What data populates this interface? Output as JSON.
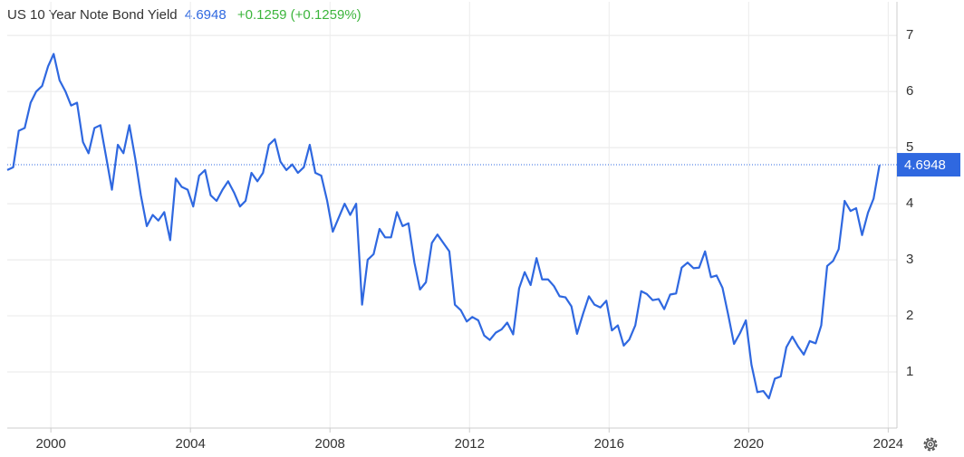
{
  "chart_data": {
    "type": "line",
    "title": "US 10 Year Note Bond Yield",
    "last_value": 4.6948,
    "last_value_label": "4.6948",
    "change": "+0.1259 (+0.1259%)",
    "xlim": [
      1998.75,
      2024.25
    ],
    "xticks": [
      2000,
      2004,
      2008,
      2012,
      2016,
      2020,
      2024
    ],
    "ylim": [
      0,
      7.6
    ],
    "yticks": [
      1,
      2,
      3,
      4,
      5,
      6,
      7
    ],
    "grid": true,
    "series": [
      {
        "name": "US 10 Year Note Bond Yield",
        "color": "#2f68e0",
        "x": [
          1998.75,
          1998.92,
          1999.08,
          1999.25,
          1999.42,
          1999.58,
          1999.75,
          1999.92,
          2000.08,
          2000.25,
          2000.42,
          2000.58,
          2000.75,
          2000.92,
          2001.08,
          2001.25,
          2001.42,
          2001.58,
          2001.75,
          2001.92,
          2002.08,
          2002.25,
          2002.42,
          2002.58,
          2002.75,
          2002.92,
          2003.08,
          2003.25,
          2003.42,
          2003.58,
          2003.75,
          2003.92,
          2004.08,
          2004.25,
          2004.42,
          2004.58,
          2004.75,
          2004.92,
          2005.08,
          2005.25,
          2005.42,
          2005.58,
          2005.75,
          2005.92,
          2006.08,
          2006.25,
          2006.42,
          2006.58,
          2006.75,
          2006.92,
          2007.08,
          2007.25,
          2007.42,
          2007.58,
          2007.75,
          2007.92,
          2008.08,
          2008.25,
          2008.42,
          2008.58,
          2008.75,
          2008.92,
          2009.08,
          2009.25,
          2009.42,
          2009.58,
          2009.75,
          2009.92,
          2010.08,
          2010.25,
          2010.42,
          2010.58,
          2010.75,
          2010.92,
          2011.08,
          2011.25,
          2011.42,
          2011.58,
          2011.75,
          2011.92,
          2012.08,
          2012.25,
          2012.42,
          2012.58,
          2012.75,
          2012.92,
          2013.08,
          2013.25,
          2013.42,
          2013.58,
          2013.75,
          2013.92,
          2014.08,
          2014.25,
          2014.42,
          2014.58,
          2014.75,
          2014.92,
          2015.08,
          2015.25,
          2015.42,
          2015.58,
          2015.75,
          2015.92,
          2016.08,
          2016.25,
          2016.42,
          2016.58,
          2016.75,
          2016.92,
          2017.08,
          2017.25,
          2017.42,
          2017.58,
          2017.75,
          2017.92,
          2018.08,
          2018.25,
          2018.42,
          2018.58,
          2018.75,
          2018.92,
          2019.08,
          2019.25,
          2019.42,
          2019.58,
          2019.75,
          2019.92,
          2020.08,
          2020.25,
          2020.42,
          2020.58,
          2020.75,
          2020.92,
          2021.08,
          2021.25,
          2021.42,
          2021.58,
          2021.75,
          2021.92,
          2022.08,
          2022.25,
          2022.42,
          2022.58,
          2022.75,
          2022.92,
          2023.08,
          2023.25,
          2023.42,
          2023.58,
          2023.75
        ],
        "values": [
          4.6,
          4.65,
          5.3,
          5.35,
          5.8,
          6.0,
          6.1,
          6.45,
          6.67,
          6.2,
          6.0,
          5.75,
          5.8,
          5.1,
          4.9,
          5.35,
          5.4,
          4.85,
          4.25,
          5.05,
          4.9,
          5.4,
          4.8,
          4.15,
          3.6,
          3.8,
          3.7,
          3.85,
          3.35,
          4.45,
          4.3,
          4.25,
          3.95,
          4.5,
          4.6,
          4.15,
          4.05,
          4.25,
          4.4,
          4.2,
          3.95,
          4.05,
          4.55,
          4.4,
          4.55,
          5.05,
          5.15,
          4.75,
          4.6,
          4.7,
          4.55,
          4.65,
          5.05,
          4.55,
          4.5,
          4.05,
          3.5,
          3.75,
          4.0,
          3.8,
          4.0,
          2.2,
          3.0,
          3.1,
          3.55,
          3.4,
          3.4,
          3.85,
          3.6,
          3.65,
          2.95,
          2.47,
          2.6,
          3.3,
          3.45,
          3.3,
          3.15,
          2.2,
          2.1,
          1.9,
          1.98,
          1.92,
          1.65,
          1.57,
          1.7,
          1.76,
          1.88,
          1.67,
          2.49,
          2.78,
          2.55,
          3.03,
          2.65,
          2.65,
          2.53,
          2.35,
          2.33,
          2.17,
          1.68,
          2.03,
          2.35,
          2.2,
          2.15,
          2.27,
          1.74,
          1.83,
          1.47,
          1.58,
          1.83,
          2.44,
          2.39,
          2.28,
          2.3,
          2.12,
          2.38,
          2.4,
          2.86,
          2.95,
          2.85,
          2.86,
          3.15,
          2.69,
          2.72,
          2.5,
          2.0,
          1.5,
          1.69,
          1.92,
          1.13,
          0.64,
          0.66,
          0.53,
          0.88,
          0.92,
          1.44,
          1.63,
          1.45,
          1.31,
          1.55,
          1.51,
          1.83,
          2.89,
          2.98,
          3.19,
          4.05,
          3.87,
          3.92,
          3.44,
          3.84,
          4.09,
          4.69
        ]
      }
    ]
  }
}
